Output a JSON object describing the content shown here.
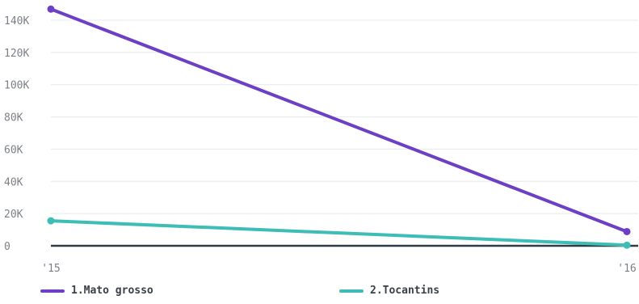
{
  "chart_data": {
    "type": "line",
    "title": "",
    "xlabel": "",
    "ylabel": "",
    "x": [
      "'15",
      "'16"
    ],
    "ylim": [
      0,
      150000
    ],
    "yticks": [
      0,
      20000,
      40000,
      60000,
      80000,
      100000,
      120000,
      140000
    ],
    "ytick_labels": [
      "0",
      "20K",
      "40K",
      "60K",
      "80K",
      "100K",
      "120K",
      "140K"
    ],
    "grid": true,
    "legend_position": "bottom",
    "series": [
      {
        "name": "1.Mato grosso",
        "color": "#6c3fc4",
        "values": [
          146900,
          8800
        ]
      },
      {
        "name": "2.Tocantins",
        "color": "#3dbdb5",
        "values": [
          15500,
          400
        ]
      }
    ]
  }
}
